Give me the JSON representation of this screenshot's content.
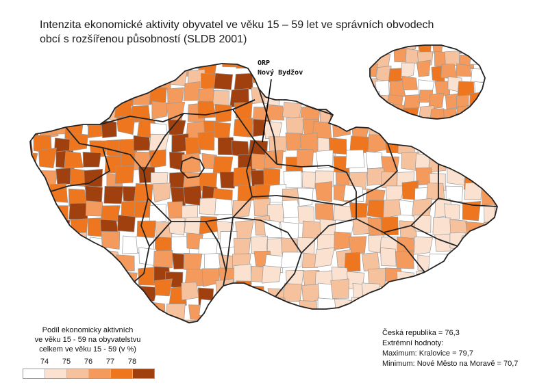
{
  "title": {
    "line1": "Intenzita ekonomické aktivity obyvatel ve věku 15 – 59 let ve správních obvodech",
    "line2": "obcí s rozšířenou působností (SLDB 2001)"
  },
  "callout": {
    "line1": "ORP",
    "line2": "Nový Bydžov"
  },
  "legend": {
    "caption": [
      "Podíl ekonomicky aktivních",
      "ve věku 15 - 59 na obyvatelstvu",
      "celkem ve věku 15 - 59 (v %)"
    ],
    "ticks": [
      "74",
      "75",
      "76",
      "77",
      "78"
    ],
    "classes": [
      {
        "color": "#ffffff"
      },
      {
        "color": "#fbe1cf"
      },
      {
        "color": "#f6c19d"
      },
      {
        "color": "#f39a5c"
      },
      {
        "color": "#ee761f"
      },
      {
        "color": "#a0400e"
      }
    ]
  },
  "stats": {
    "line1": "Česká republika = 76,3",
    "line2": "Extrémní hodnoty:",
    "line3": "Maximum: Kralovice = 79,7",
    "line4": "Minimum:  Nové Město na Moravě = 70,7"
  },
  "colors": {
    "region_border": "#222222",
    "district_border": "#9a9a9a"
  }
}
